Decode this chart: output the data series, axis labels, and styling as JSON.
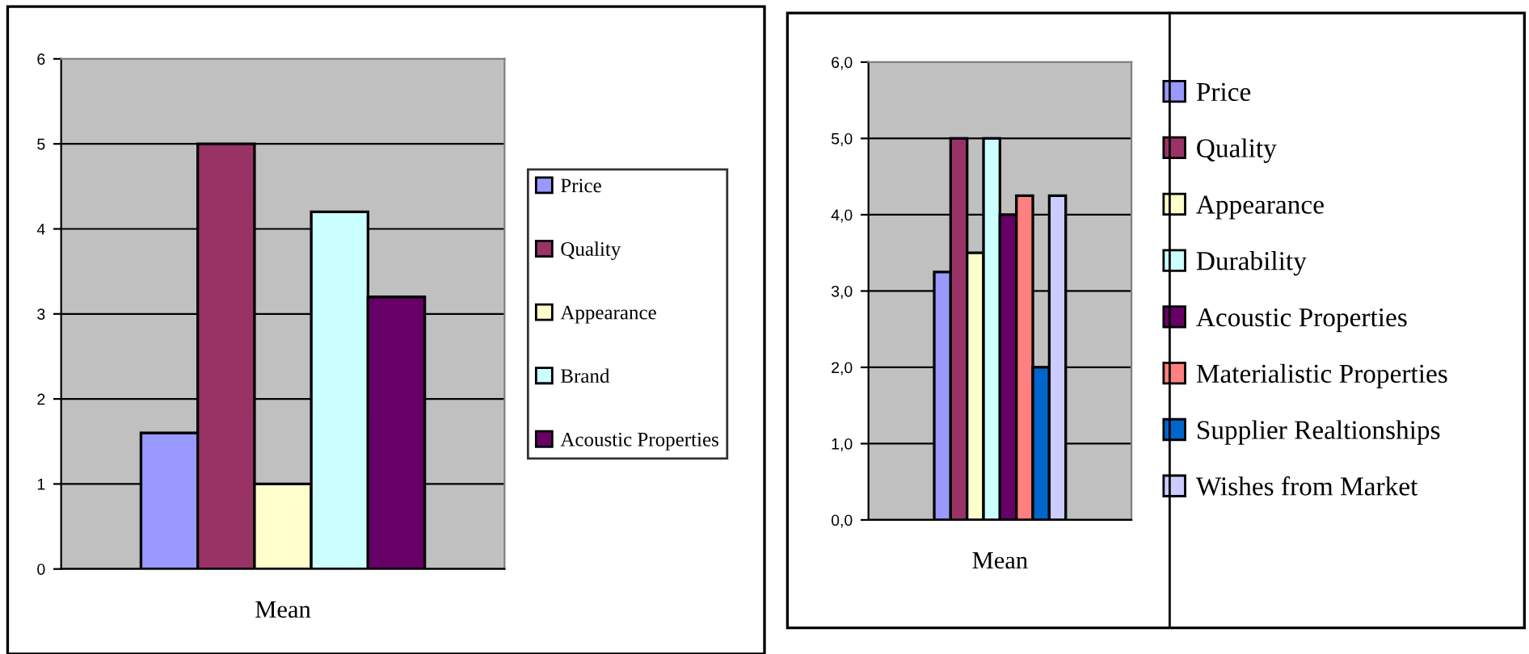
{
  "chart_data": [
    {
      "type": "bar",
      "xlabel": null,
      "categories": [
        "Mean"
      ],
      "series": [
        {
          "name": "Price",
          "color": "#9999ff",
          "values": [
            1.6
          ]
        },
        {
          "name": "Quality",
          "color": "#993366",
          "values": [
            5
          ]
        },
        {
          "name": "Appearance",
          "color": "#ffffcc",
          "values": [
            1
          ]
        },
        {
          "name": "Brand",
          "color": "#ccffff",
          "values": [
            4.2
          ]
        },
        {
          "name": "Acoustic Properties",
          "color": "#660066",
          "values": [
            3.2
          ]
        }
      ],
      "ylim": [
        0,
        6
      ],
      "yticks": [
        0,
        1,
        2,
        3,
        4,
        5,
        6
      ],
      "grid": "y",
      "legend": "right"
    },
    {
      "type": "bar",
      "categories": [
        "Mean"
      ],
      "series": [
        {
          "name": "Price",
          "color": "#9999ff",
          "values": [
            3.25
          ]
        },
        {
          "name": "Quality",
          "color": "#993366",
          "values": [
            5.0
          ]
        },
        {
          "name": "Appearance",
          "color": "#ffffcc",
          "values": [
            3.5
          ]
        },
        {
          "name": "Durability",
          "color": "#ccffff",
          "values": [
            5.0
          ]
        },
        {
          "name": "Acoustic Properties",
          "color": "#660066",
          "values": [
            4.0
          ]
        },
        {
          "name": "Materialistic Properties",
          "color": "#ff8080",
          "values": [
            4.25
          ]
        },
        {
          "name": "Supplier Realtionships",
          "color": "#0066cc",
          "values": [
            2.0
          ]
        },
        {
          "name": "Wishes from Market",
          "color": "#ccccff",
          "values": [
            4.25
          ]
        }
      ],
      "ylim": [
        0,
        6
      ],
      "yticks": [
        {
          "value": 0,
          "label": "0,0"
        },
        {
          "value": 1,
          "label": "1,0"
        },
        {
          "value": 2,
          "label": "2,0"
        },
        {
          "value": 3,
          "label": "3,0"
        },
        {
          "value": 4,
          "label": "4,0"
        },
        {
          "value": 5,
          "label": "5,0"
        },
        {
          "value": 6,
          "label": "6,0"
        }
      ],
      "grid": "y",
      "legend": "right"
    }
  ]
}
